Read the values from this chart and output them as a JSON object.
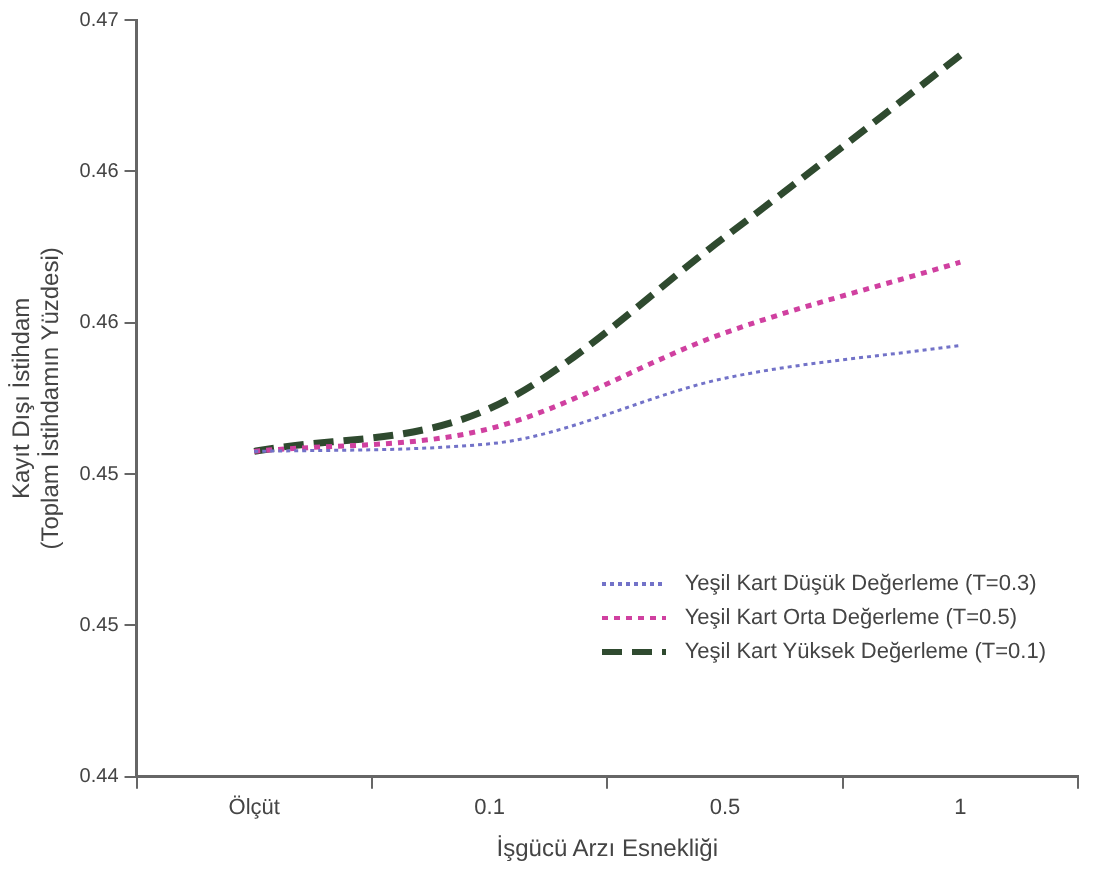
{
  "chart_data": {
    "type": "line",
    "xlabel": "İşgücü Arzı Esnekliği",
    "ylabel": "Kayıt Dışı İstihdam\n(Toplam İstihdamın Yüzdesi)",
    "categories": [
      "Ölçüt",
      "0.1",
      "0.5",
      "1"
    ],
    "series": [
      {
        "name": "Yeşil Kart Düşük Değerleme (T=0.3)",
        "color": "#7272c8",
        "line_style": "dotted",
        "values": [
          0.4529,
          0.4532,
          0.4558,
          0.4571
        ]
      },
      {
        "name": "Yeşil Kart Orta Değerleme (T=0.5)",
        "color": "#d040a0",
        "line_style": "dotted",
        "values": [
          0.4529,
          0.4538,
          0.4576,
          0.4604
        ]
      },
      {
        "name": "Yeşil Kart Yüksek Değerleme (T=0.1)",
        "color": "#2f4a2f",
        "line_style": "dashed",
        "values": [
          0.4529,
          0.4546,
          0.4614,
          0.4686
        ]
      }
    ],
    "ylim": [
      0.44,
      0.47
    ],
    "yticks": [
      {
        "value": 0.44,
        "label": "0.44"
      },
      {
        "value": 0.446,
        "label": "0.45"
      },
      {
        "value": 0.452,
        "label": "0.45"
      },
      {
        "value": 0.458,
        "label": "0.46"
      },
      {
        "value": 0.464,
        "label": "0.46"
      },
      {
        "value": 0.47,
        "label": "0.47"
      }
    ],
    "grid": false,
    "legend": "bottom right",
    "marker": "none"
  }
}
